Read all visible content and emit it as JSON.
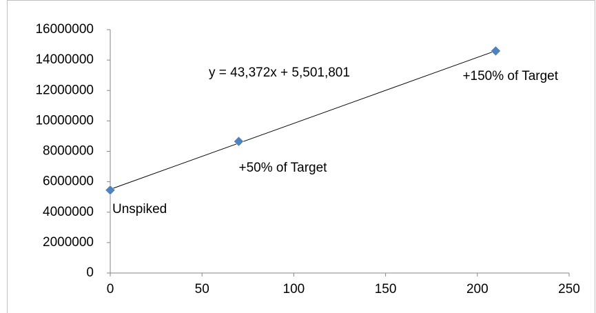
{
  "chart_data": {
    "type": "scatter",
    "x": [
      0,
      70,
      210
    ],
    "values": [
      5450000,
      8650000,
      14600000
    ],
    "point_labels": [
      "Unspiked",
      "+50% of Target",
      "+150% of Target"
    ],
    "color": "#4f81bd",
    "xlim": [
      0,
      250
    ],
    "xticks": [
      0,
      50,
      100,
      150,
      200,
      250
    ],
    "ylim": [
      0,
      16000000
    ],
    "yticks": [
      0,
      2000000,
      4000000,
      6000000,
      8000000,
      10000000,
      12000000,
      14000000,
      16000000
    ],
    "grid": false,
    "trendline": {
      "slope": 43372,
      "intercept": 5501801,
      "label": "y = 43,372x + 5,501,801"
    }
  }
}
